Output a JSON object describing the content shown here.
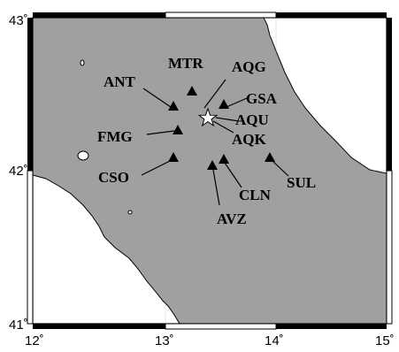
{
  "map": {
    "lat_labels": [
      "43˚",
      "42˚",
      "41˚"
    ],
    "lon_labels": [
      "12˚",
      "13˚",
      "14˚",
      "15˚"
    ],
    "colors": {
      "land": "#a0a0a0",
      "sea": "#ffffff",
      "marker": "#000000",
      "epicenter": "#ffffff",
      "frame": "#000000"
    },
    "epicenter": {
      "name": "star-icon",
      "lon": 13.38,
      "lat": 42.34
    },
    "stations": [
      {
        "code": "MTR",
        "lon": 13.25,
        "lat": 42.52
      },
      {
        "code": "ANT",
        "lon": 13.08,
        "lat": 42.42
      },
      {
        "code": "AQG",
        "lon": 13.36,
        "lat": 42.37
      },
      {
        "code": "GSA",
        "lon": 13.52,
        "lat": 42.42
      },
      {
        "code": "AQU",
        "lon": 13.4,
        "lat": 42.35
      },
      {
        "code": "AQK",
        "lon": 13.4,
        "lat": 42.34
      },
      {
        "code": "FMG",
        "lon": 13.11,
        "lat": 42.27
      },
      {
        "code": "CSO",
        "lon": 13.08,
        "lat": 42.11
      },
      {
        "code": "CLN",
        "lon": 13.52,
        "lat": 42.08
      },
      {
        "code": "AVZ",
        "lon": 13.42,
        "lat": 42.03
      },
      {
        "code": "SUL",
        "lon": 13.93,
        "lat": 42.09
      }
    ]
  }
}
